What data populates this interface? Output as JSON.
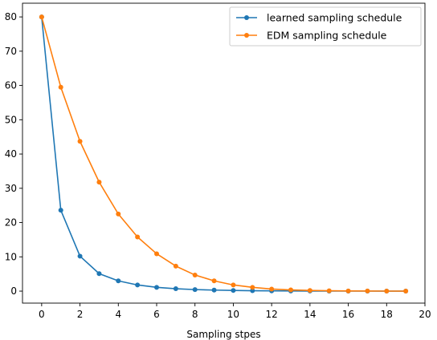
{
  "chart_data": {
    "type": "line",
    "title": "",
    "xlabel": "Sampling stpes",
    "ylabel": "",
    "xlim": [
      -1,
      20
    ],
    "ylim": [
      -3.5,
      84
    ],
    "xticks": [
      0,
      2,
      4,
      6,
      8,
      10,
      12,
      14,
      16,
      18,
      20
    ],
    "yticks": [
      0,
      10,
      20,
      30,
      40,
      50,
      60,
      70,
      80
    ],
    "grid": false,
    "legend_position": "top-right",
    "x": [
      0,
      1,
      2,
      3,
      4,
      5,
      6,
      7,
      8,
      9,
      10,
      11,
      12,
      13,
      14,
      15,
      16,
      17,
      18,
      19
    ],
    "series": [
      {
        "name": "learned sampling schedule",
        "color": "#1f77b4",
        "marker": "circle",
        "values": [
          80,
          23.6,
          10.2,
          5.1,
          3.0,
          1.8,
          1.1,
          0.7,
          0.45,
          0.3,
          0.2,
          0.12,
          0.08,
          0.05,
          0.03,
          0.02,
          0.01,
          0.008,
          0.005,
          0.002
        ]
      },
      {
        "name": "EDM sampling schedule",
        "color": "#ff7f0e",
        "marker": "circle",
        "values": [
          80,
          59.5,
          43.7,
          31.8,
          22.5,
          15.8,
          10.9,
          7.3,
          4.7,
          3.0,
          1.8,
          1.1,
          0.6,
          0.35,
          0.2,
          0.1,
          0.05,
          0.03,
          0.01,
          0.002
        ]
      }
    ]
  }
}
